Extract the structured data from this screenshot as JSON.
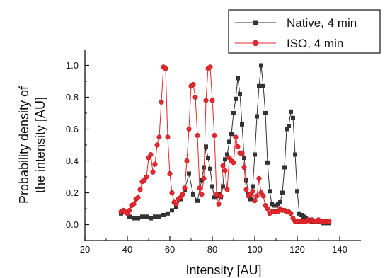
{
  "chart_data": {
    "type": "line",
    "title": "",
    "xlabel": "Intensity [AU]",
    "ylabel_lines": [
      "Probability density of",
      "the intensity [AU]"
    ],
    "xlim": [
      20,
      150
    ],
    "ylim": [
      -0.1,
      1.1
    ],
    "xticks": [
      20,
      40,
      60,
      80,
      100,
      120,
      140
    ],
    "xtick_labels": [
      "20",
      "40",
      "60",
      "80",
      "100",
      "120",
      "140"
    ],
    "yticks": [
      0.0,
      0.2,
      0.4,
      0.6,
      0.8,
      1.0
    ],
    "ytick_labels": [
      "0.0",
      "0.2",
      "0.4",
      "0.6",
      "0.8",
      "1.0"
    ],
    "grid": false,
    "legend_position": "top-right",
    "series": [
      {
        "name": "Native, 4 min",
        "color": "#333333",
        "marker": "square",
        "x": [
          37,
          39,
          41,
          43,
          45,
          47,
          49,
          51,
          53,
          55,
          57,
          59,
          61,
          63,
          65,
          67,
          69,
          71,
          73,
          75,
          76,
          77,
          78,
          79,
          80,
          81,
          82,
          83,
          84,
          85,
          86,
          87,
          88,
          89,
          90,
          91,
          92,
          93,
          94,
          95,
          96,
          97,
          98,
          99,
          100,
          101,
          102,
          103,
          104,
          105,
          106,
          107,
          108,
          109,
          110,
          111,
          112,
          113,
          114,
          115,
          116,
          117,
          118,
          119,
          120,
          121,
          122,
          123,
          124,
          125,
          126,
          127,
          128,
          129,
          130,
          131,
          132,
          133,
          134,
          135
        ],
        "y": [
          0.07,
          0.08,
          0.05,
          0.04,
          0.04,
          0.05,
          0.05,
          0.04,
          0.05,
          0.05,
          0.06,
          0.07,
          0.09,
          0.11,
          0.16,
          0.22,
          0.32,
          0.19,
          0.15,
          0.28,
          0.36,
          0.49,
          0.42,
          0.35,
          0.24,
          0.17,
          0.18,
          0.19,
          0.17,
          0.24,
          0.41,
          0.44,
          0.52,
          0.57,
          0.7,
          0.79,
          0.92,
          0.82,
          0.63,
          0.42,
          0.28,
          0.19,
          0.16,
          0.24,
          0.44,
          0.68,
          0.87,
          1.0,
          0.87,
          0.7,
          0.39,
          0.21,
          0.13,
          0.12,
          0.12,
          0.13,
          0.14,
          0.2,
          0.36,
          0.6,
          0.62,
          0.71,
          0.67,
          0.44,
          0.21,
          0.07,
          0.06,
          0.05,
          0.04,
          0.03,
          0.03,
          0.02,
          0.02,
          0.02,
          0.02,
          0.02,
          0.01,
          0.01,
          0.01,
          0.01
        ]
      },
      {
        "name": "ISO, 4 min",
        "color": "#e8282d",
        "marker": "circle",
        "x": [
          37,
          38,
          39,
          40,
          41,
          42,
          43,
          44,
          45,
          46,
          47,
          48,
          49,
          50,
          51,
          52,
          53,
          54,
          55,
          56,
          57,
          58,
          59,
          60,
          61,
          62,
          63,
          64,
          65,
          66,
          67,
          68,
          69,
          70,
          71,
          72,
          73,
          74,
          75,
          76,
          77,
          78,
          79,
          80,
          81,
          82,
          83,
          84,
          85,
          86,
          87,
          88,
          89,
          90,
          91,
          92,
          93,
          94,
          95,
          96,
          97,
          98,
          99,
          100,
          101,
          102,
          103,
          104,
          105,
          106,
          107,
          108,
          109,
          110,
          111,
          112,
          113,
          114,
          115,
          116,
          117,
          118,
          119,
          120,
          121,
          122,
          123,
          124,
          125,
          126,
          127,
          128,
          129,
          130,
          131,
          132,
          133,
          134,
          135
        ],
        "y": [
          0.08,
          0.09,
          0.08,
          0.07,
          0.09,
          0.12,
          0.13,
          0.16,
          0.17,
          0.22,
          0.27,
          0.28,
          0.3,
          0.42,
          0.44,
          0.33,
          0.38,
          0.5,
          0.55,
          0.77,
          0.99,
          0.98,
          0.55,
          0.32,
          0.2,
          0.14,
          0.13,
          0.16,
          0.17,
          0.19,
          0.23,
          0.4,
          0.6,
          0.87,
          0.88,
          0.8,
          0.56,
          0.23,
          0.19,
          0.29,
          0.78,
          0.98,
          0.99,
          0.78,
          0.56,
          0.19,
          0.13,
          0.18,
          0.37,
          0.34,
          0.22,
          0.42,
          0.4,
          0.39,
          0.55,
          0.49,
          0.45,
          0.45,
          0.36,
          0.22,
          0.18,
          0.19,
          0.21,
          0.15,
          0.18,
          0.29,
          0.2,
          0.18,
          0.12,
          0.1,
          0.07,
          0.08,
          0.08,
          0.08,
          0.08,
          0.1,
          0.09,
          0.09,
          0.08,
          0.08,
          0.07,
          0.04,
          0.02,
          0.02,
          0.02,
          0.02,
          0.02,
          0.02,
          0.03,
          0.02,
          0.03,
          0.02,
          0.02,
          0.03,
          0.02,
          0.02,
          0.02,
          0.02,
          0.02
        ]
      }
    ]
  }
}
